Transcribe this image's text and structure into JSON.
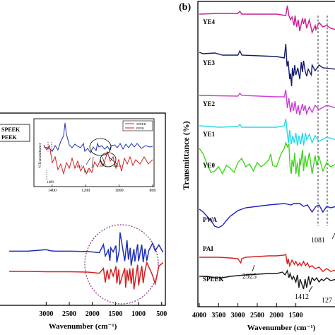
{
  "figure": {
    "panel_b_label": "(b)"
  },
  "chart_data": [
    {
      "panel": "a",
      "type": "line",
      "xlabel": "Wavenumber (cm⁻¹)",
      "ylabel": "",
      "xlim": [
        4000,
        450
      ],
      "x_ticks": [
        3000,
        2500,
        2000,
        1500,
        1000,
        500
      ],
      "x_tick_labels": [
        "3000",
        "2500",
        "2000",
        "1500",
        "1000",
        "500"
      ],
      "legend": [
        "SPEEK",
        "PEEK"
      ],
      "legend_position": "top-left",
      "series": [
        {
          "name": "SPEEK",
          "color": "#1f2fb8",
          "x": [
            3800,
            3400,
            3000,
            2900,
            2800,
            2500,
            2100,
            1850,
            1760,
            1720,
            1655,
            1620,
            1600,
            1550,
            1490,
            1470,
            1420,
            1400,
            1300,
            1250,
            1220,
            1180,
            1160,
            1100,
            1080,
            1020,
            1000,
            930,
            900,
            860,
            820,
            780,
            700,
            640,
            560,
            470
          ],
          "y": [
            0.5,
            0.5,
            0.9,
            0.6,
            0.5,
            0.5,
            0.4,
            0.1,
            2.3,
            -0.8,
            0.8,
            -2.1,
            1.4,
            0.3,
            2.0,
            -2.6,
            0.6,
            5.6,
            -2.2,
            3.5,
            -1.8,
            1.4,
            -3.4,
            1.1,
            -2.3,
            2.4,
            -2.2,
            2.3,
            -2.5,
            1.2,
            -2.1,
            0.6,
            2.6,
            0.6,
            2.2,
            0.2
          ]
        },
        {
          "name": "PEEK",
          "color": "#d61f1f",
          "x": [
            3800,
            3400,
            3000,
            2500,
            2100,
            1850,
            1760,
            1720,
            1680,
            1640,
            1600,
            1550,
            1490,
            1470,
            1430,
            1410,
            1300,
            1280,
            1250,
            1220,
            1190,
            1160,
            1120,
            1100,
            1020,
            1000,
            930,
            900,
            860,
            820,
            700,
            640,
            560,
            470
          ],
          "y": [
            0.2,
            0.2,
            0.1,
            0.1,
            0.0,
            -0.3,
            1.0,
            -2.8,
            0.6,
            -2.0,
            0.8,
            -1.1,
            1.6,
            -3.1,
            0.7,
            -3.4,
            1.1,
            -4.2,
            0.6,
            -2.3,
            1.0,
            -3.2,
            1.1,
            -4.7,
            2.0,
            -3.6,
            1.7,
            -3.0,
            0.4,
            2.6,
            -0.8,
            -3.2,
            1.6,
            2.6
          ]
        }
      ],
      "inset": {
        "ylabel": "%Transmittance",
        "xlim": [
          1450,
          800
        ],
        "x_ticks": [
          1400,
          1200,
          1000,
          800
        ],
        "x_tick_labels": [
          "1400",
          "1200",
          "1000",
          "800"
        ],
        "legend": [
          "SPEEK",
          "PEEK"
        ],
        "annotations": [
          "1182",
          "1157",
          "1077",
          "1021",
          "1489"
        ]
      }
    },
    {
      "panel": "b",
      "type": "line",
      "xlabel": "Wavenumber (cm⁻¹)",
      "ylabel": "Transmittance (%)",
      "xlim": [
        4000,
        450
      ],
      "x_ticks": [
        4000,
        3500,
        3000,
        2500,
        2000,
        1500
      ],
      "x_tick_labels": [
        "4000",
        "3500",
        "3000",
        "2500",
        "2000",
        "1500"
      ],
      "series": [
        {
          "name": "YE4",
          "color": "#c71e8e"
        },
        {
          "name": "YE3",
          "color": "#141a6e"
        },
        {
          "name": "YE2",
          "color": "#cc3fd6"
        },
        {
          "name": "YE1",
          "color": "#29d9e8"
        },
        {
          "name": "YE0",
          "color": "#3fd61c"
        },
        {
          "name": "PWA",
          "color": "#2020c8"
        },
        {
          "name": "PAI",
          "color": "#d81f1f"
        },
        {
          "name": "SPEEK",
          "color": "#1a1a1a"
        }
      ],
      "annotations": [
        "2925",
        "1081",
        "1412",
        "127"
      ]
    }
  ]
}
